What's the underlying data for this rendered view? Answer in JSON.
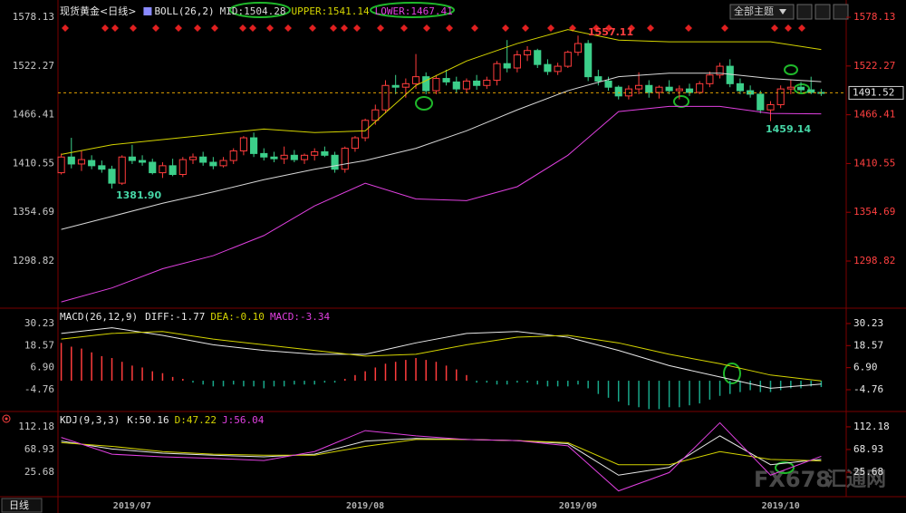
{
  "ui": {
    "button": "全部主题",
    "tab": "日线",
    "watermark": "FX678",
    "watermark_cn": "汇通网"
  },
  "chart_data": [
    {
      "type": "candlestick",
      "title": "现货黄金<日线>",
      "indicator": "BOLL(26,2)",
      "up_color": "#ff3c3c",
      "down_color": "#3ccf8a",
      "categories": [
        null,
        null,
        null,
        null,
        null,
        null,
        null,
        "2019/07",
        null,
        null,
        null,
        null,
        null,
        null,
        null,
        null,
        null,
        null,
        null,
        null,
        null,
        null,
        null,
        null,
        null,
        null,
        null,
        null,
        null,
        null,
        "2019/08",
        null,
        null,
        null,
        null,
        null,
        null,
        null,
        null,
        null,
        null,
        null,
        null,
        null,
        null,
        null,
        null,
        null,
        null,
        null,
        null,
        "2019/09",
        null,
        null,
        null,
        null,
        null,
        null,
        null,
        null,
        null,
        null,
        null,
        null,
        null,
        null,
        null,
        null,
        null,
        null,
        null,
        "2019/10",
        null,
        null,
        null,
        null
      ],
      "ohlc": [
        [
          1400,
          1422,
          1398,
          1418
        ],
        [
          1418,
          1440,
          1405,
          1410
        ],
        [
          1410,
          1425,
          1402,
          1415
        ],
        [
          1414,
          1420,
          1404,
          1408
        ],
        [
          1408,
          1414,
          1400,
          1404
        ],
        [
          1404,
          1408,
          1381.9,
          1388
        ],
        [
          1388,
          1420,
          1386,
          1418
        ],
        [
          1418,
          1432,
          1410,
          1414
        ],
        [
          1414,
          1420,
          1408,
          1412
        ],
        [
          1412,
          1416,
          1398,
          1400
        ],
        [
          1400,
          1412,
          1394,
          1408
        ],
        [
          1408,
          1416,
          1396,
          1398
        ],
        [
          1398,
          1418,
          1395,
          1415
        ],
        [
          1415,
          1422,
          1410,
          1418
        ],
        [
          1418,
          1424,
          1408,
          1412
        ],
        [
          1412,
          1418,
          1404,
          1408
        ],
        [
          1408,
          1418,
          1406,
          1414
        ],
        [
          1414,
          1428,
          1410,
          1425
        ],
        [
          1425,
          1442,
          1420,
          1440
        ],
        [
          1440,
          1446,
          1418,
          1422
        ],
        [
          1422,
          1428,
          1414,
          1418
        ],
        [
          1418,
          1424,
          1412,
          1416
        ],
        [
          1416,
          1430,
          1410,
          1420
        ],
        [
          1420,
          1426,
          1412,
          1415
        ],
        [
          1415,
          1422,
          1410,
          1420
        ],
        [
          1420,
          1428,
          1414,
          1424
        ],
        [
          1424,
          1430,
          1418,
          1420
        ],
        [
          1420,
          1424,
          1400,
          1404
        ],
        [
          1404,
          1430,
          1400,
          1428
        ],
        [
          1428,
          1442,
          1424,
          1440
        ],
        [
          1440,
          1462,
          1436,
          1460
        ],
        [
          1460,
          1478,
          1455,
          1472
        ],
        [
          1472,
          1506,
          1468,
          1500
        ],
        [
          1500,
          1512,
          1490,
          1498
        ],
        [
          1498,
          1508,
          1486,
          1502
        ],
        [
          1502,
          1536,
          1496,
          1510
        ],
        [
          1510,
          1515,
          1490,
          1494
        ],
        [
          1494,
          1512,
          1490,
          1508
        ],
        [
          1508,
          1518,
          1500,
          1504
        ],
        [
          1504,
          1510,
          1492,
          1496
        ],
        [
          1496,
          1508,
          1492,
          1505
        ],
        [
          1505,
          1512,
          1495,
          1500
        ],
        [
          1500,
          1510,
          1496,
          1506
        ],
        [
          1506,
          1528,
          1500,
          1525
        ],
        [
          1525,
          1552,
          1515,
          1520
        ],
        [
          1520,
          1540,
          1515,
          1535
        ],
        [
          1535,
          1545,
          1528,
          1540
        ],
        [
          1540,
          1542,
          1520,
          1524
        ],
        [
          1524,
          1530,
          1512,
          1516
        ],
        [
          1516,
          1526,
          1512,
          1522
        ],
        [
          1522,
          1540,
          1520,
          1538
        ],
        [
          1538,
          1557.11,
          1534,
          1548
        ],
        [
          1548,
          1552,
          1505,
          1510
        ],
        [
          1510,
          1518,
          1500,
          1505
        ],
        [
          1505,
          1510,
          1494,
          1498
        ],
        [
          1498,
          1500,
          1484,
          1488
        ],
        [
          1488,
          1500,
          1484,
          1496
        ],
        [
          1496,
          1515,
          1490,
          1500
        ],
        [
          1500,
          1506,
          1486,
          1492
        ],
        [
          1492,
          1500,
          1485,
          1498
        ],
        [
          1498,
          1506,
          1490,
          1494
        ],
        [
          1494,
          1500,
          1484,
          1496
        ],
        [
          1496,
          1502,
          1488,
          1492
        ],
        [
          1492,
          1505,
          1490,
          1502
        ],
        [
          1502,
          1516,
          1498,
          1512
        ],
        [
          1512,
          1526,
          1508,
          1522
        ],
        [
          1522,
          1530,
          1498,
          1502
        ],
        [
          1502,
          1508,
          1490,
          1494
        ],
        [
          1494,
          1500,
          1486,
          1490
        ],
        [
          1490,
          1494,
          1468,
          1472
        ],
        [
          1472,
          1482,
          1459.14,
          1478
        ],
        [
          1478,
          1500,
          1474,
          1496
        ],
        [
          1496,
          1506,
          1490,
          1498
        ],
        [
          1498,
          1504,
          1492,
          1495
        ],
        [
          1495,
          1510,
          1490,
          1492
        ],
        [
          1492,
          1496,
          1488,
          1491.52
        ]
      ],
      "series": [
        {
          "name": "MID:1504.28",
          "color": "#d8d8d8",
          "x": [
            0,
            5,
            10,
            15,
            20,
            25,
            30,
            35,
            40,
            45,
            50,
            55,
            60,
            65,
            70,
            75
          ],
          "values": [
            1335,
            1350,
            1365,
            1378,
            1392,
            1404,
            1414,
            1428,
            1448,
            1472,
            1494,
            1510,
            1514,
            1514,
            1508,
            1504.28
          ]
        },
        {
          "name": "UPPER:1541.14",
          "color": "#d4d400",
          "x": [
            0,
            5,
            10,
            15,
            20,
            25,
            30,
            35,
            40,
            45,
            50,
            55,
            60,
            65,
            70,
            75
          ],
          "values": [
            1421,
            1432,
            1438,
            1444,
            1450,
            1446,
            1448,
            1500,
            1528,
            1548,
            1564,
            1552,
            1550,
            1550,
            1550,
            1541.14
          ]
        },
        {
          "name": "LOWER:1467.41",
          "color": "#e040e0",
          "x": [
            0,
            5,
            10,
            15,
            20,
            25,
            30,
            35,
            40,
            45,
            50,
            55,
            60,
            65,
            70,
            75
          ],
          "values": [
            1252,
            1268,
            1290,
            1305,
            1328,
            1362,
            1388,
            1370,
            1368,
            1384,
            1420,
            1470,
            1476,
            1476,
            1468,
            1467.41
          ]
        }
      ],
      "last_price": 1491.52,
      "annotations": [
        "1557.11",
        "1381.90",
        "1459.14"
      ],
      "ylim": [
        1246.9,
        1592.7
      ],
      "yticks": [
        1578.13,
        1522.27,
        1466.41,
        1410.55,
        1354.69,
        1298.82
      ]
    },
    {
      "type": "macd",
      "title": "MACD(26,12,9)",
      "up_color": "#ff3c3c",
      "down_color": "#18a88a",
      "series": [
        {
          "name": "DIFF:-1.77",
          "kind": "line",
          "color": "#e8e8e8",
          "x": [
            0,
            5,
            10,
            15,
            20,
            25,
            30,
            35,
            40,
            45,
            50,
            55,
            60,
            65,
            70,
            75
          ],
          "values": [
            25,
            28,
            24,
            19,
            16,
            14,
            14,
            20,
            25,
            26,
            23,
            16,
            8,
            2,
            -4,
            -1.77
          ]
        },
        {
          "name": "DEA:-0.10",
          "kind": "line",
          "color": "#d4d400",
          "x": [
            0,
            5,
            10,
            15,
            20,
            25,
            30,
            35,
            40,
            45,
            50,
            55,
            60,
            65,
            70,
            75
          ],
          "values": [
            22,
            25,
            26,
            22,
            19,
            16,
            13,
            14,
            19,
            23,
            24,
            20,
            14,
            9,
            3,
            -0.1
          ]
        },
        {
          "name": "MACD:-3.34",
          "kind": "bar",
          "color": "#e040e0",
          "values": [
            20,
            18,
            17,
            15,
            13,
            12,
            10,
            8,
            7,
            5,
            4,
            2,
            1,
            -1,
            -2,
            -3,
            -3,
            -2,
            -3,
            -3,
            -4,
            -3,
            -3,
            -2,
            -2,
            -2,
            -1,
            -1,
            1,
            3,
            5,
            7,
            9,
            10,
            11,
            12,
            11,
            10,
            8,
            6,
            3,
            -1,
            -1,
            -2,
            -2,
            -1,
            -1,
            -2,
            -3,
            -3,
            -3,
            -2,
            -4,
            -7,
            -9,
            -11,
            -13,
            -14,
            -15,
            -15,
            -14,
            -14,
            -13,
            -12,
            -10,
            -8,
            -7,
            -6,
            -5,
            -6,
            -6,
            -5,
            -4,
            -4,
            -3,
            -3.34
          ]
        }
      ],
      "ylim": [
        -15.3,
        37.4
      ],
      "yticks": [
        30.23,
        18.57,
        {
          "value": 6.9,
          "label": "6.90"
        },
        -4.76
      ]
    },
    {
      "type": "kdj",
      "title": "KDJ(9,3,3)",
      "series": [
        {
          "name": "K:50.16",
          "kind": "line",
          "color": "#e8e8e8",
          "x": [
            0,
            5,
            10,
            15,
            20,
            25,
            30,
            35,
            40,
            45,
            50,
            55,
            60,
            65,
            70,
            75
          ],
          "values": [
            85,
            70,
            62,
            58,
            55,
            60,
            85,
            90,
            88,
            86,
            80,
            20,
            35,
            95,
            40,
            50.16
          ]
        },
        {
          "name": "D:47.22",
          "kind": "line",
          "color": "#d4d400",
          "x": [
            0,
            5,
            10,
            15,
            20,
            25,
            30,
            35,
            40,
            45,
            50,
            55,
            60,
            65,
            70,
            75
          ],
          "values": [
            82,
            75,
            65,
            60,
            58,
            58,
            75,
            88,
            88,
            86,
            82,
            40,
            40,
            65,
            50,
            47.22
          ]
        },
        {
          "name": "J:56.04",
          "kind": "line",
          "color": "#e040e0",
          "x": [
            0,
            5,
            10,
            15,
            20,
            25,
            30,
            35,
            40,
            45,
            50,
            55,
            60,
            65,
            70,
            75
          ],
          "values": [
            92,
            60,
            55,
            52,
            48,
            65,
            105,
            95,
            88,
            86,
            76,
            -10,
            25,
            120,
            20,
            56.04
          ]
        }
      ],
      "ylim": [
        -21,
        138
      ],
      "yticks": [
        112.18,
        68.93,
        25.68
      ]
    }
  ]
}
